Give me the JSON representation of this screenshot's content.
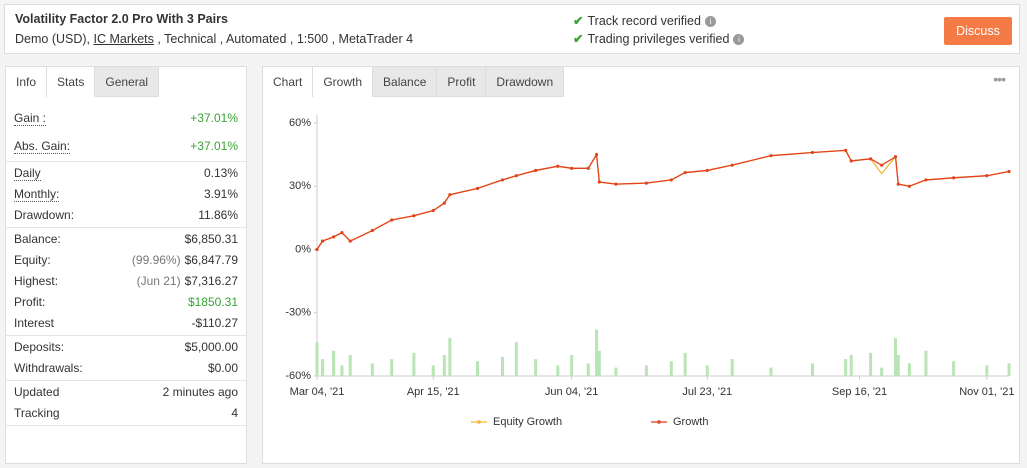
{
  "header": {
    "title": "Volatility Factor 2.0 Pro With 3 Pairs",
    "subtitle": [
      "Demo (USD), ",
      "IC Markets",
      " , Technical , Automated , 1:500 , MetaTrader 4"
    ],
    "verified": [
      "Track record verified",
      "Trading privileges verified"
    ],
    "button": "Discuss"
  },
  "left_tabs": [
    "Info",
    "Stats",
    "General"
  ],
  "stats": [
    [
      {
        "label": "Gain :",
        "value": "+37.01%",
        "hint": true,
        "positive": true
      },
      {
        "label": "Abs. Gain:",
        "value": "+37.01%",
        "hint": true,
        "positive": true
      }
    ],
    [
      {
        "label": "Daily",
        "value": "0.13%",
        "hint": true
      },
      {
        "label": "Monthly:",
        "value": "3.91%",
        "hint": true
      },
      {
        "label": "Drawdown:",
        "value": "11.86%"
      }
    ],
    [
      {
        "label": "Balance:",
        "value": "$6,850.31"
      },
      {
        "label": "Equity:",
        "note": "(99.96%)",
        "value": "$6,847.79"
      },
      {
        "label": "Highest:",
        "note": "(Jun 21)",
        "value": "$7,316.27"
      },
      {
        "label": "Profit:",
        "value": "$1850.31",
        "positive": true
      },
      {
        "label": "Interest",
        "value": "-$110.27"
      }
    ],
    [
      {
        "label": "Deposits:",
        "value": "$5,000.00"
      },
      {
        "label": "Withdrawals:",
        "value": "$0.00"
      }
    ],
    [
      {
        "label": "Updated",
        "value": "2 minutes ago"
      },
      {
        "label": "Tracking",
        "value": "4"
      }
    ]
  ],
  "chart_tabs": [
    "Chart",
    "Growth",
    "Balance",
    "Profit",
    "Drawdown"
  ],
  "chart_data": {
    "type": "line",
    "x": [
      "2021-03-04",
      "2021-03-06",
      "2021-03-10",
      "2021-03-13",
      "2021-03-16",
      "2021-03-24",
      "2021-03-31",
      "2021-04-08",
      "2021-04-15",
      "2021-04-19",
      "2021-04-21",
      "2021-05-01",
      "2021-05-10",
      "2021-05-15",
      "2021-05-22",
      "2021-05-30",
      "2021-06-04",
      "2021-06-10",
      "2021-06-13",
      "2021-06-14",
      "2021-06-20",
      "2021-07-01",
      "2021-07-10",
      "2021-07-15",
      "2021-07-23",
      "2021-08-01",
      "2021-08-15",
      "2021-08-30",
      "2021-09-11",
      "2021-09-13",
      "2021-09-20",
      "2021-09-24",
      "2021-09-29",
      "2021-09-30",
      "2021-10-04",
      "2021-10-10",
      "2021-10-20",
      "2021-11-01",
      "2021-11-09"
    ],
    "xlim": [
      "2021-03-04",
      "2021-11-09"
    ],
    "xticks": [
      {
        "value": "2021-03-04",
        "label": "Mar 04, '21"
      },
      {
        "value": "2021-04-15",
        "label": "Apr 15, '21"
      },
      {
        "value": "2021-06-04",
        "label": "Jun 04, '21"
      },
      {
        "value": "2021-07-23",
        "label": "Jul 23, '21"
      },
      {
        "value": "2021-09-16",
        "label": "Sep 16, '21"
      },
      {
        "value": "2021-11-01",
        "label": "Nov 01, '21"
      }
    ],
    "ylim": [
      -60,
      60
    ],
    "yticks": [
      {
        "value": -60,
        "label": "-60%"
      },
      {
        "value": -30,
        "label": "-30%"
      },
      {
        "value": 0,
        "label": "0%"
      },
      {
        "value": 30,
        "label": "30%"
      },
      {
        "value": 60,
        "label": "60%"
      }
    ],
    "series": [
      {
        "name": "Equity Growth",
        "color": "#f3b63c",
        "values": [
          0,
          4,
          6,
          8,
          4,
          9,
          14,
          16,
          18.5,
          22,
          26,
          29,
          33,
          35,
          37.5,
          39.5,
          38.5,
          38.5,
          45,
          32,
          31,
          31.5,
          33,
          36.5,
          37.5,
          40,
          44.5,
          46,
          47,
          42,
          43,
          36,
          44,
          31,
          30,
          33,
          34,
          35,
          37
        ]
      },
      {
        "name": "Growth",
        "color": "#e2431e",
        "values": [
          0,
          4,
          6,
          8,
          4,
          9,
          14,
          16,
          18.5,
          22,
          26,
          29,
          33,
          35,
          37.5,
          39.5,
          38.5,
          38.5,
          45,
          32,
          31,
          31.5,
          33,
          36.5,
          37.5,
          40,
          44.5,
          46,
          47,
          42,
          43,
          40,
          44,
          31,
          30,
          33,
          34,
          35,
          37
        ],
        "markers": true
      },
      {
        "kind": "bar",
        "color": "#b9e4b4",
        "values": [
          -44,
          -52,
          -48,
          -55,
          -50,
          -54,
          -52,
          -49,
          -55,
          -50,
          -42,
          -53,
          -51,
          -44,
          -52,
          -55,
          -50,
          -54,
          -38,
          -48,
          -56,
          -55,
          -53,
          -49,
          -55,
          -52,
          -56,
          -54,
          -52,
          -50,
          -49,
          -56,
          -42,
          -50,
          -54,
          -48,
          -53,
          -55,
          -54
        ]
      }
    ]
  }
}
